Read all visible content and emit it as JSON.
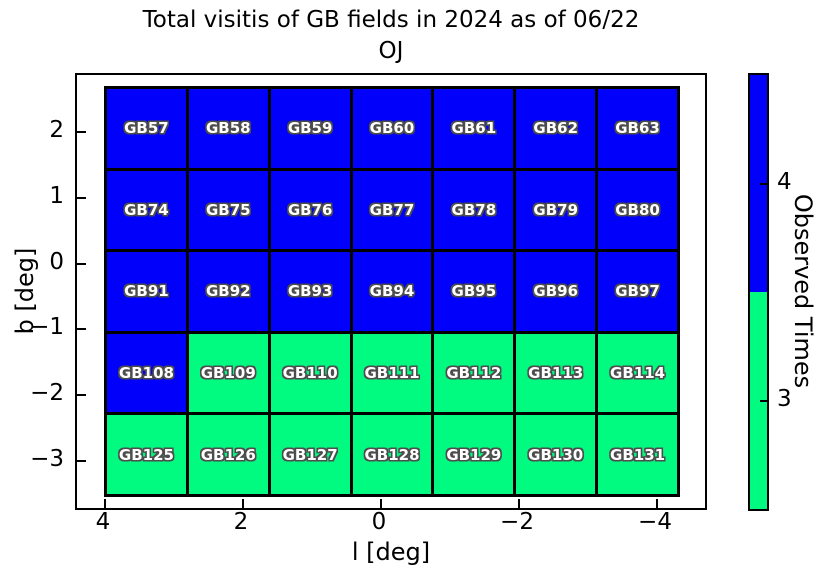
{
  "chart_data": {
    "type": "heatmap",
    "title": "Total visitis of GB fields in 2024 as of 06/22",
    "subtitle": "OJ",
    "xlabel": "l [deg]",
    "ylabel": "b [deg]",
    "x_ticks": [
      {
        "label": "4",
        "value": 4
      },
      {
        "label": "2",
        "value": 2
      },
      {
        "label": "0",
        "value": 0
      },
      {
        "label": "−2",
        "value": -2
      },
      {
        "label": "−4",
        "value": -4
      }
    ],
    "y_ticks": [
      {
        "label": "2",
        "value": 2
      },
      {
        "label": "1",
        "value": 1
      },
      {
        "label": "0",
        "value": 0
      },
      {
        "label": "−1",
        "value": -1
      },
      {
        "label": "−2",
        "value": -2
      },
      {
        "label": "−3",
        "value": -3
      }
    ],
    "grid_shape": {
      "columns": 7,
      "rows": 5
    },
    "rows": [
      {
        "fields": [
          "GB57",
          "GB58",
          "GB59",
          "GB60",
          "GB61",
          "GB62",
          "GB63"
        ],
        "observed_times": [
          4,
          4,
          4,
          4,
          4,
          4,
          4
        ]
      },
      {
        "fields": [
          "GB74",
          "GB75",
          "GB76",
          "GB77",
          "GB78",
          "GB79",
          "GB80"
        ],
        "observed_times": [
          4,
          4,
          4,
          4,
          4,
          4,
          4
        ]
      },
      {
        "fields": [
          "GB91",
          "GB92",
          "GB93",
          "GB94",
          "GB95",
          "GB96",
          "GB97"
        ],
        "observed_times": [
          4,
          4,
          4,
          4,
          4,
          4,
          4
        ]
      },
      {
        "fields": [
          "GB108",
          "GB109",
          "GB110",
          "GB111",
          "GB112",
          "GB113",
          "GB114"
        ],
        "observed_times": [
          4,
          3,
          3,
          3,
          3,
          3,
          3
        ]
      },
      {
        "fields": [
          "GB125",
          "GB126",
          "GB127",
          "GB128",
          "GB129",
          "GB130",
          "GB131"
        ],
        "observed_times": [
          3,
          3,
          3,
          3,
          3,
          3,
          3
        ]
      }
    ],
    "value_colors": {
      "4": "#0000fb",
      "3": "#00fb80"
    },
    "colorbar": {
      "label": "Observed Times",
      "ticks": [
        {
          "label": "4",
          "color": "#0000fb"
        },
        {
          "label": "3",
          "color": "#00fb80"
        }
      ],
      "position": "right"
    },
    "legend": null,
    "grid_lines": "black cell borders"
  }
}
